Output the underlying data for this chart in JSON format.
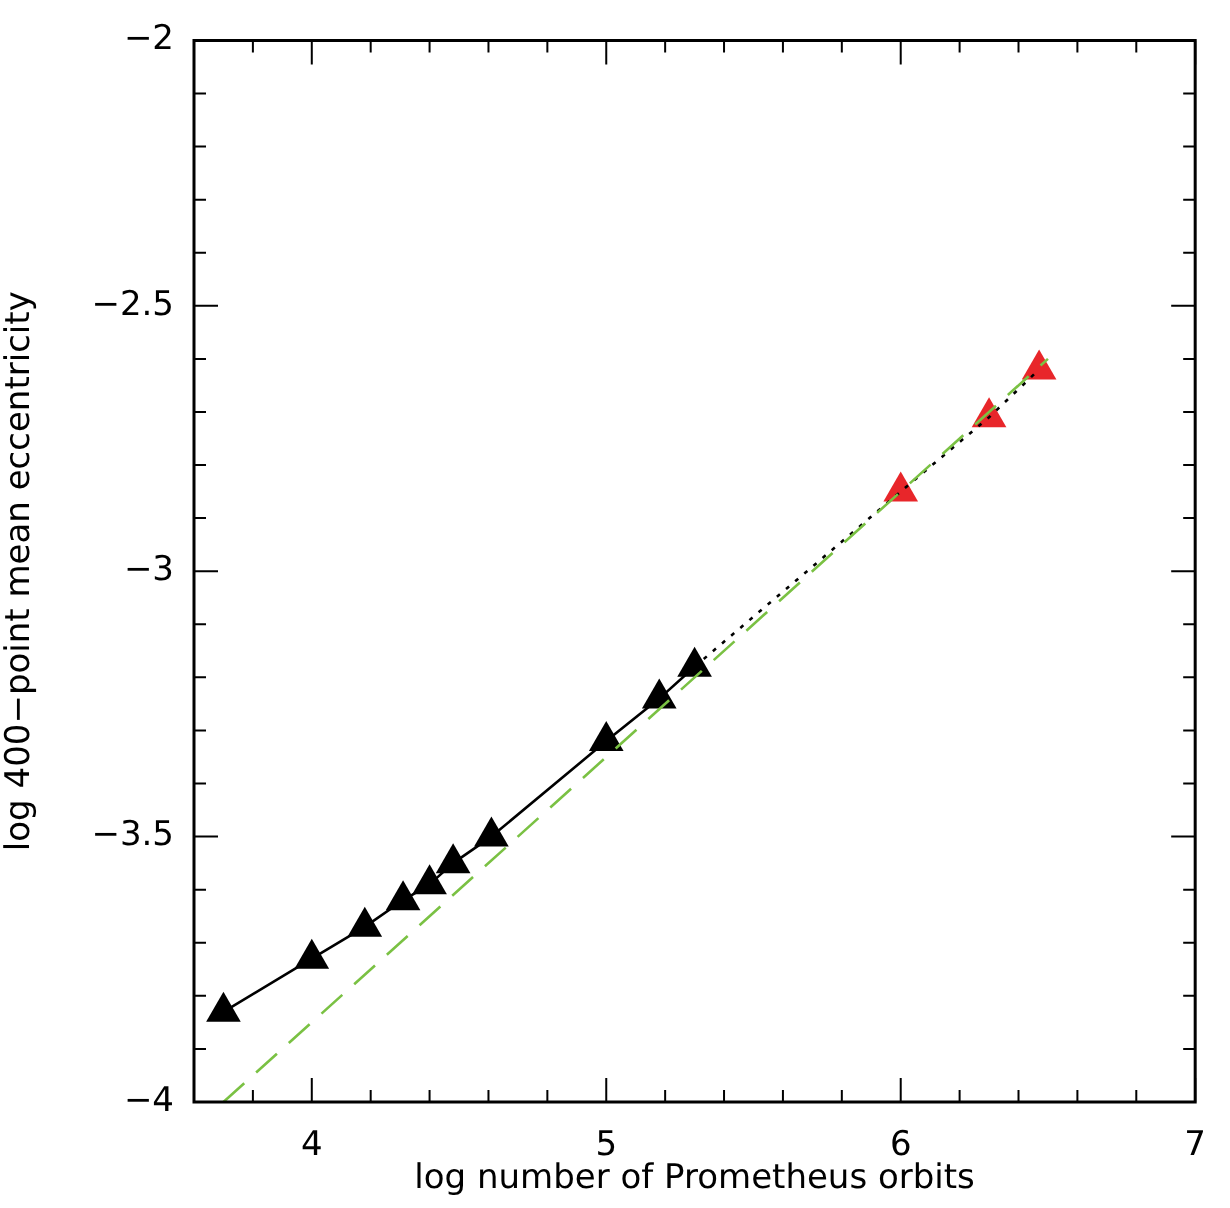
{
  "chart_data": {
    "type": "line",
    "xlabel": "log number of Prometheus orbits",
    "ylabel": "log 400−point mean eccentricity",
    "xlim": [
      3.6,
      7
    ],
    "ylim": [
      -4,
      -2
    ],
    "xticks": [
      {
        "value": 3.6,
        "label": null
      },
      {
        "value": 3.8,
        "label": null
      },
      4,
      {
        "value": 4.2,
        "label": null
      },
      {
        "value": 4.4,
        "label": null
      },
      {
        "value": 4.6,
        "label": null
      },
      {
        "value": 4.8,
        "label": null
      },
      5,
      {
        "value": 5.2,
        "label": null
      },
      {
        "value": 5.4,
        "label": null
      },
      {
        "value": 5.6,
        "label": null
      },
      {
        "value": 5.8,
        "label": null
      },
      6,
      {
        "value": 6.2,
        "label": null
      },
      {
        "value": 6.4,
        "label": null
      },
      {
        "value": 6.6,
        "label": null
      },
      {
        "value": 6.8,
        "label": null
      },
      7
    ],
    "yticks": [
      {
        "value": -4,
        "label": "−4"
      },
      {
        "value": -3.9,
        "label": null
      },
      {
        "value": -3.8,
        "label": null
      },
      {
        "value": -3.7,
        "label": null
      },
      {
        "value": -3.6,
        "label": null
      },
      {
        "value": -3.5,
        "label": "−3.5"
      },
      {
        "value": -3.4,
        "label": null
      },
      {
        "value": -3.3,
        "label": null
      },
      {
        "value": -3.2,
        "label": null
      },
      {
        "value": -3.1,
        "label": null
      },
      {
        "value": -3,
        "label": "−3"
      },
      {
        "value": -2.9,
        "label": null
      },
      {
        "value": -2.8,
        "label": null
      },
      {
        "value": -2.7,
        "label": null
      },
      {
        "value": -2.6,
        "label": null
      },
      {
        "value": -2.5,
        "label": "−2.5"
      },
      {
        "value": -2.4,
        "label": null
      },
      {
        "value": -2.3,
        "label": null
      },
      {
        "value": -2.2,
        "label": null
      },
      {
        "value": -2.1,
        "label": null
      },
      {
        "value": -2,
        "label": "−2"
      }
    ],
    "grid": false,
    "legend": false,
    "series": [
      {
        "color": "#7ac143",
        "line_style": "dashed",
        "marker": "none",
        "x": [
          3.7,
          6.5
        ],
        "values": [
          -4.0,
          -2.6
        ]
      },
      {
        "color": "#000000",
        "line_style": "dotted",
        "marker": "none",
        "x": [
          5.3,
          6.0,
          6.3,
          6.47
        ],
        "values": [
          -3.18,
          -2.85,
          -2.71,
          -2.62
        ]
      },
      {
        "color": "#000000",
        "line_style": "solid",
        "marker": "triangle",
        "x": [
          3.7,
          4.0,
          4.18,
          4.31,
          4.4,
          4.48,
          4.61,
          5.0,
          5.18,
          5.3
        ],
        "values": [
          -3.83,
          -3.73,
          -3.67,
          -3.62,
          -3.59,
          -3.55,
          -3.5,
          -3.32,
          -3.24,
          -3.18
        ]
      },
      {
        "type": "scatter",
        "color": "#e8262a",
        "marker": "triangle",
        "x": [
          6.0,
          6.3,
          6.47
        ],
        "values": [
          -2.85,
          -2.71,
          -2.62
        ]
      }
    ]
  }
}
